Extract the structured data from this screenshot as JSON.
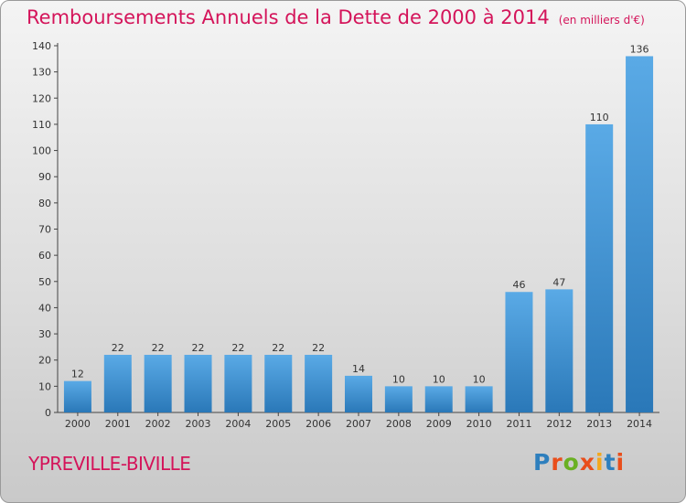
{
  "title": "Remboursements Annuels de la Dette de 2000 à 2014",
  "subtitle": "(en milliers d'€)",
  "commune": "YPREVILLE-BIVILLE",
  "logo": {
    "letters": [
      "P",
      "r",
      "o",
      "x",
      "i",
      "t",
      "i"
    ],
    "colors": [
      "#2e7fbd",
      "#e94e1b",
      "#6ab023",
      "#e94e1b",
      "#f4a81d",
      "#2e7fbd",
      "#e94e1b"
    ]
  },
  "colors": {
    "bar_top": "#5aaae6",
    "bar_bottom": "#2a78b8",
    "accent": "#d4145a"
  },
  "chart_data": {
    "type": "bar",
    "title": "Remboursements Annuels de la Dette de 2000 à 2014",
    "ylabel": "en milliers d'€",
    "xlabel": "",
    "categories": [
      "2000",
      "2001",
      "2002",
      "2003",
      "2004",
      "2005",
      "2006",
      "2007",
      "2008",
      "2009",
      "2010",
      "2011",
      "2012",
      "2013",
      "2014"
    ],
    "values": [
      12,
      22,
      22,
      22,
      22,
      22,
      22,
      14,
      10,
      10,
      10,
      46,
      47,
      110,
      136
    ],
    "ylim": [
      0,
      140
    ],
    "yticks": [
      0,
      10,
      20,
      30,
      40,
      50,
      60,
      70,
      80,
      90,
      100,
      110,
      120,
      130,
      140
    ],
    "grid": false
  }
}
